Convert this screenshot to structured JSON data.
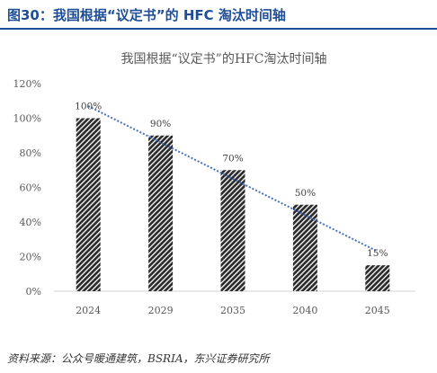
{
  "figure": {
    "title": "图30：我国根据“议定书”的 HFC 淘汰时间轴",
    "source": "资料来源：公众号暖通建筑，BSRIA，东兴证券研究所"
  },
  "chart_data": {
    "type": "bar",
    "title": "我国根据“议定书”的HFC淘汰时间轴",
    "categories": [
      "2024",
      "2029",
      "2035",
      "2040",
      "2045"
    ],
    "values": [
      100,
      90,
      70,
      50,
      15
    ],
    "value_labels": [
      "100%",
      "90%",
      "70%",
      "50%",
      "15%"
    ],
    "y_ticks": [
      0,
      20,
      40,
      60,
      80,
      100,
      120
    ],
    "y_tick_labels": [
      "0%",
      "20%",
      "40%",
      "60%",
      "80%",
      "100%",
      "120%"
    ],
    "ylim": [
      0,
      120
    ],
    "trendline": "linear",
    "colors": {
      "bar_fill": "#2b2b2b",
      "bar_hatch": "#ffffff",
      "trendline": "#4472c4"
    },
    "grid": false
  }
}
